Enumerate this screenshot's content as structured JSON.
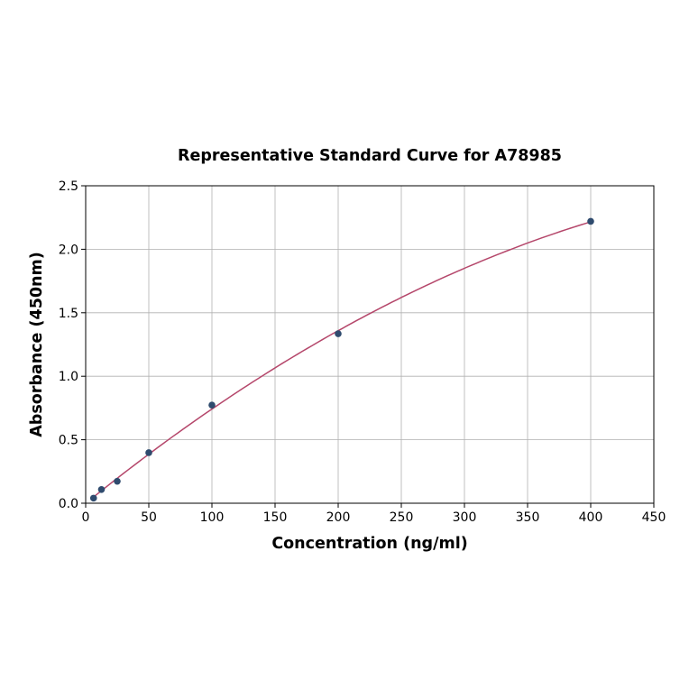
{
  "chart_data": {
    "type": "scatter",
    "title": "Representative Standard Curve for A78985",
    "xlabel": "Concentration (ng/ml)",
    "ylabel": "Absorbance (450nm)",
    "xlim": [
      0,
      450
    ],
    "ylim": [
      0,
      2.5
    ],
    "xticks": [
      "0",
      "50",
      "100",
      "150",
      "200",
      "250",
      "300",
      "350",
      "400",
      "450"
    ],
    "yticks": [
      "0.0",
      "0.5",
      "1.0",
      "1.5",
      "2.0",
      "2.5"
    ],
    "grid": true,
    "x": [
      6.25,
      12.5,
      25,
      50,
      100,
      200,
      400
    ],
    "y": [
      0.04,
      0.108,
      0.173,
      0.398,
      0.773,
      1.335,
      2.22
    ],
    "fit_curve": true,
    "colors": {
      "points": "#2f4b6e",
      "curve": "#b5476b"
    }
  }
}
